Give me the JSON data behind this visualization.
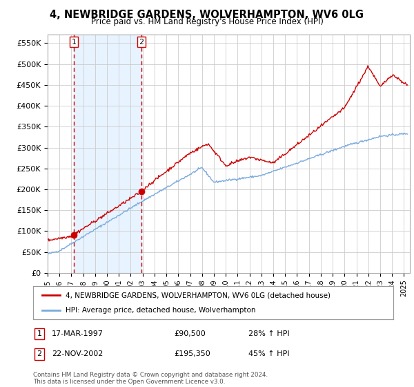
{
  "title": "4, NEWBRIDGE GARDENS, WOLVERHAMPTON, WV6 0LG",
  "subtitle": "Price paid vs. HM Land Registry's House Price Index (HPI)",
  "ylabel_ticks": [
    "£0",
    "£50K",
    "£100K",
    "£150K",
    "£200K",
    "£250K",
    "£300K",
    "£350K",
    "£400K",
    "£450K",
    "£500K",
    "£550K"
  ],
  "ytick_values": [
    0,
    50000,
    100000,
    150000,
    200000,
    250000,
    300000,
    350000,
    400000,
    450000,
    500000,
    550000
  ],
  "xlim_start": 1995.0,
  "xlim_end": 2025.5,
  "ylim_max": 570000,
  "sale1_date": 1997.21,
  "sale1_price": 90500,
  "sale2_date": 2002.9,
  "sale2_price": 195350,
  "legend_line1": "4, NEWBRIDGE GARDENS, WOLVERHAMPTON, WV6 0LG (detached house)",
  "legend_line2": "HPI: Average price, detached house, Wolverhampton",
  "table_row1_date": "17-MAR-1997",
  "table_row1_price": "£90,500",
  "table_row1_hpi": "28% ↑ HPI",
  "table_row2_date": "22-NOV-2002",
  "table_row2_price": "£195,350",
  "table_row2_hpi": "45% ↑ HPI",
  "footnote": "Contains HM Land Registry data © Crown copyright and database right 2024.\nThis data is licensed under the Open Government Licence v3.0.",
  "hpi_color": "#7aaadd",
  "price_color": "#cc0000",
  "vline_color": "#cc0000",
  "bg_shade_color": "#ddeeff",
  "grid_color": "#cccccc",
  "background_color": "#ffffff"
}
